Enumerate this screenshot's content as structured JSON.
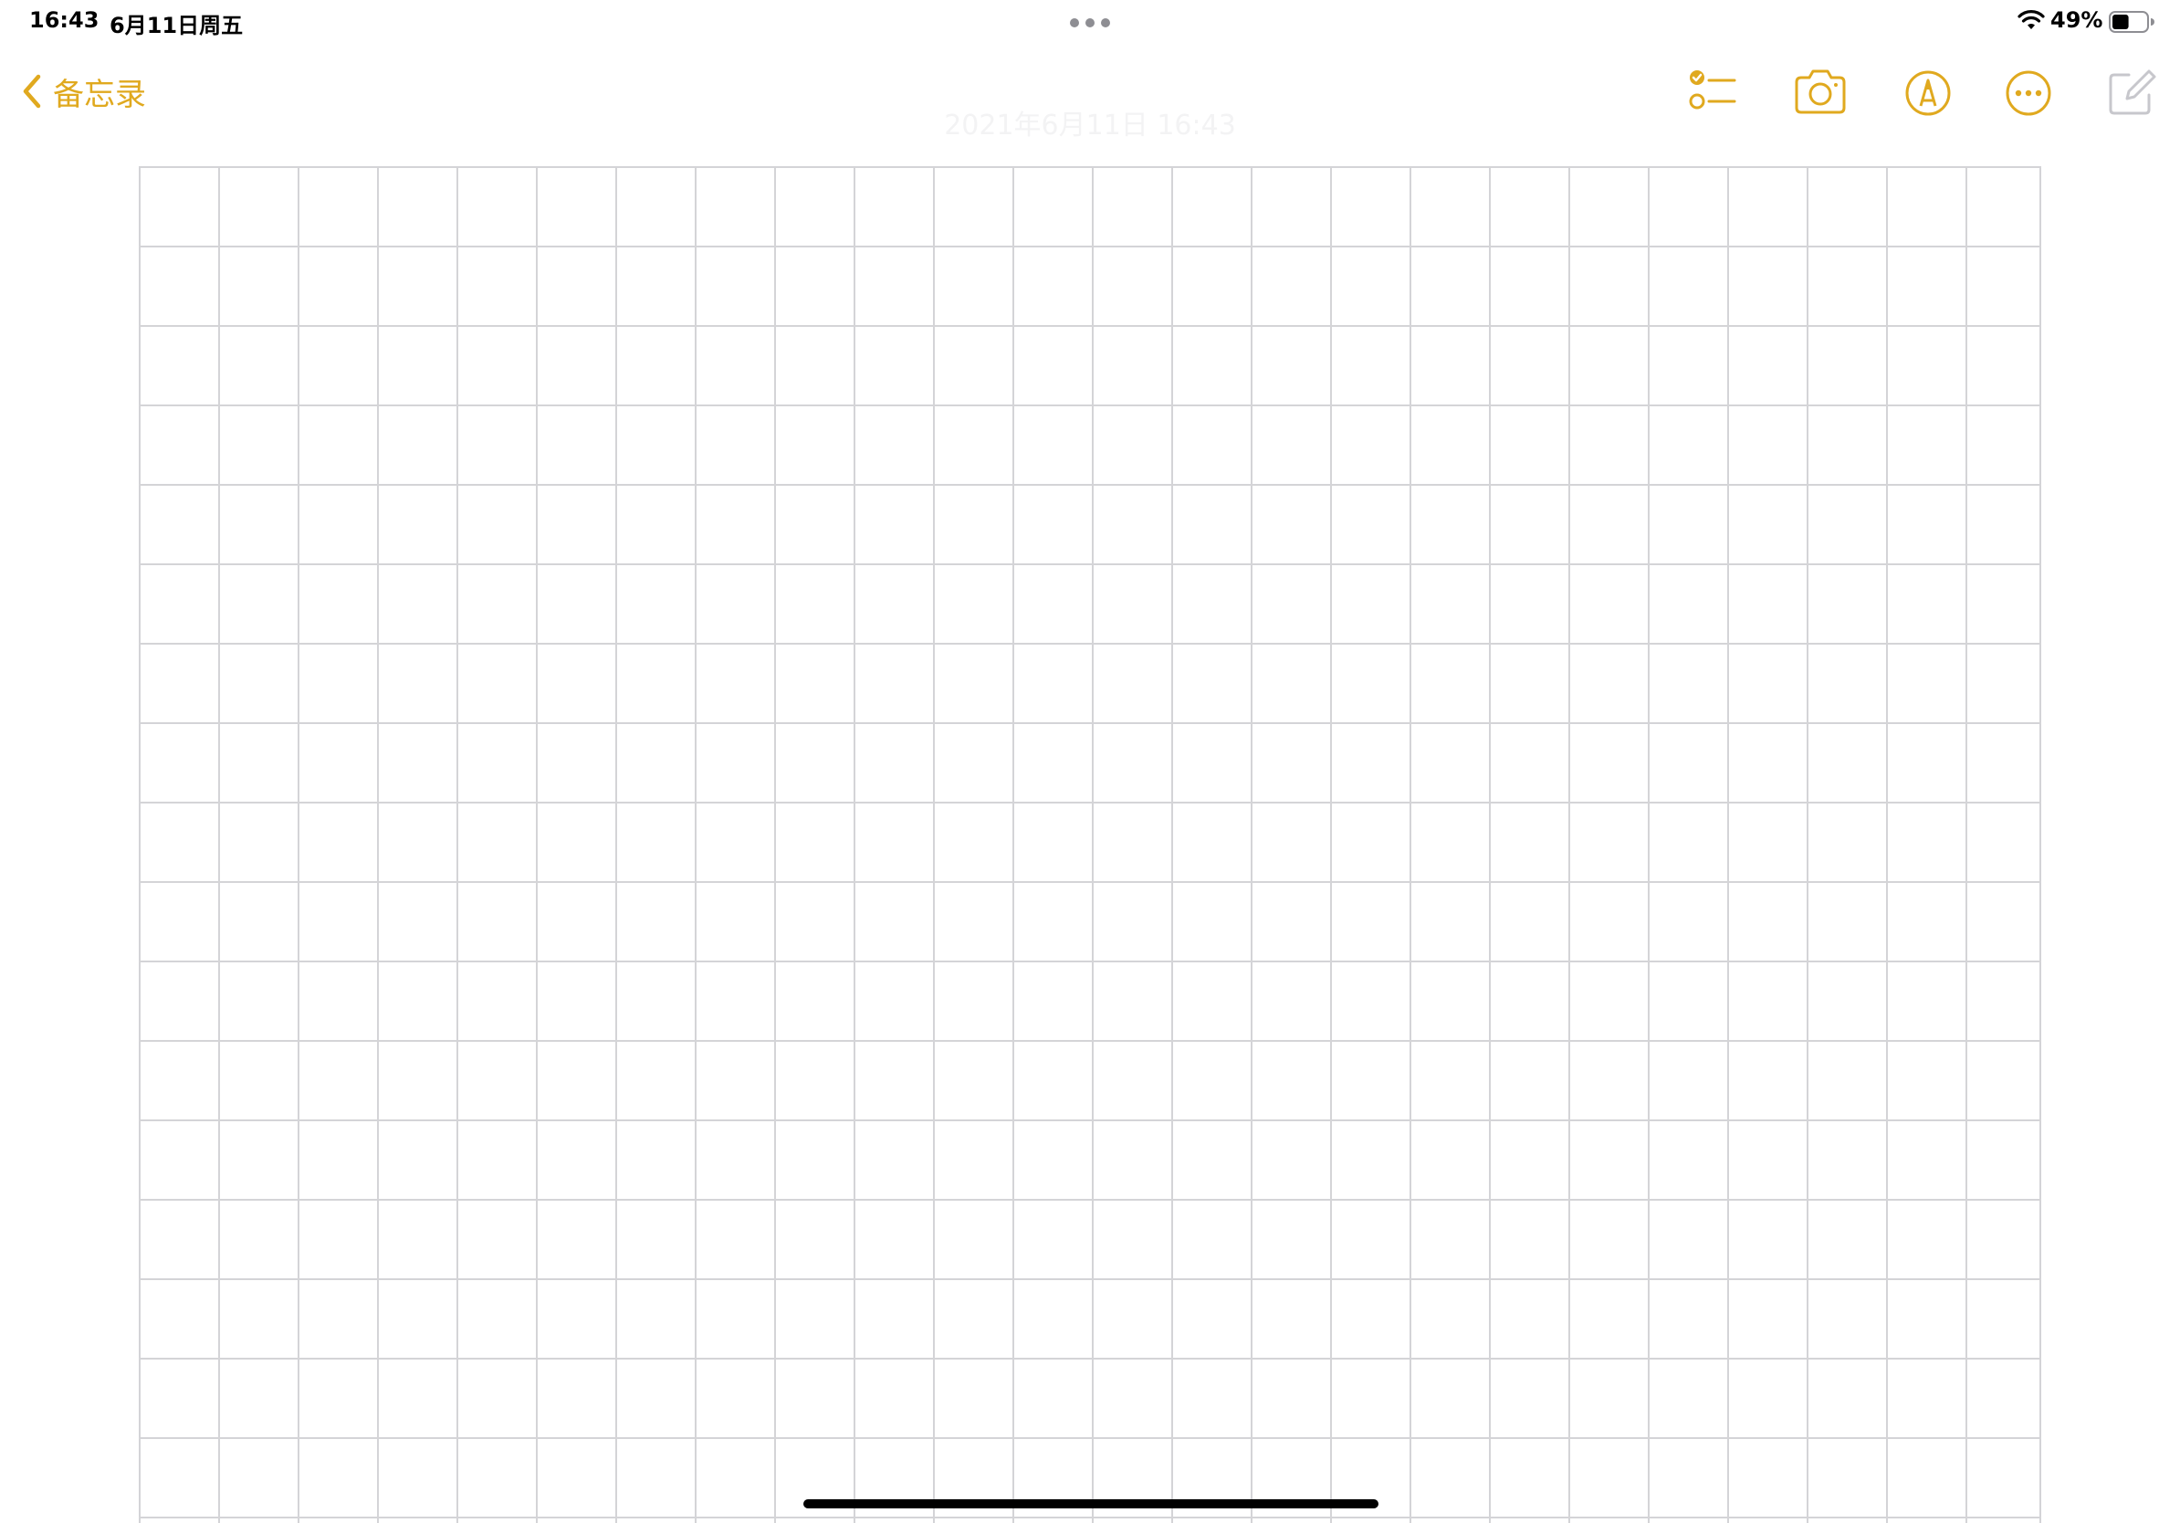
{
  "status_bar": {
    "time": "16:43",
    "date": "6月11日周五",
    "battery_percent": "49%",
    "battery_level": 0.49,
    "wifi_icon": "wifi-icon",
    "battery_icon": "battery-icon",
    "multitask_icon": "multitask-dots-icon"
  },
  "toolbar": {
    "back_label": "备忘录",
    "back_icon": "chevron-left-icon",
    "buttons": [
      {
        "name": "checklist-icon"
      },
      {
        "name": "camera-icon"
      },
      {
        "name": "markup-pen-icon"
      },
      {
        "name": "more-options-icon"
      },
      {
        "name": "compose-icon",
        "enabled": false
      }
    ]
  },
  "note": {
    "date_header": "2021年6月11日 16:43",
    "paper_style": "grid"
  },
  "colors": {
    "accent": "#e0a91f",
    "grid_line": "#d4d4d7",
    "disabled_icon": "#c7c7cc",
    "background": "#ffffff"
  }
}
